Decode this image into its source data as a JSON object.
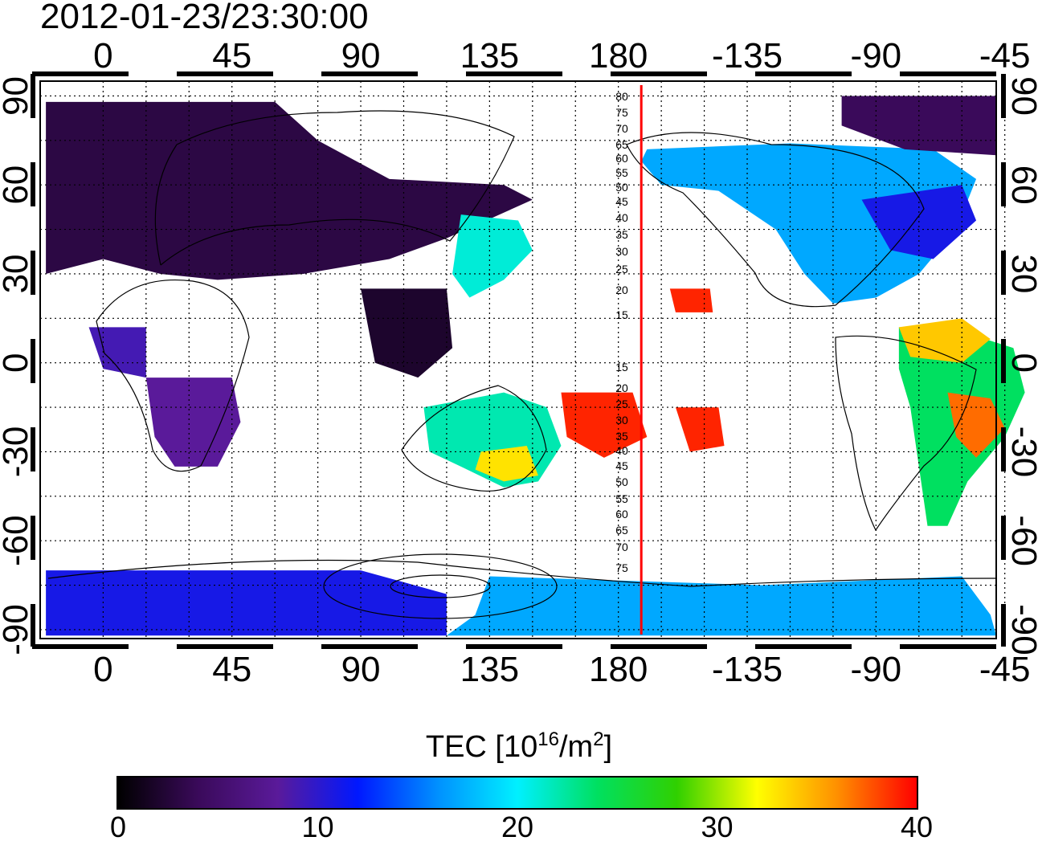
{
  "timestamp": "2012-01-23/23:30:00",
  "map": {
    "lon_ticks_top": [
      "0",
      "45",
      "90",
      "135",
      "180",
      "-135",
      "-90",
      "-45"
    ],
    "lon_ticks_bottom": [
      "0",
      "45",
      "90",
      "135",
      "180",
      "-135",
      "-90",
      "-45"
    ],
    "lat_ticks_left": [
      "90",
      "60",
      "30",
      "0",
      "-30",
      "-60",
      "-90"
    ],
    "lat_ticks_right": [
      "90",
      "60",
      "30",
      "0",
      "-30",
      "-60",
      "-90"
    ],
    "magnetic_lat_labels": [
      "80",
      "75",
      "70",
      "65",
      "60",
      "55",
      "50",
      "45",
      "40",
      "35",
      "30",
      "25",
      "20",
      "15",
      "15",
      "20",
      "25",
      "30",
      "35",
      "40",
      "45",
      "50",
      "55",
      "60",
      "65",
      "70",
      "75"
    ],
    "meridian_line_color": "#ff0000",
    "meridian_line_longitude": 188,
    "lon_range": [
      -22,
      312
    ],
    "lat_range": [
      -93,
      95
    ]
  },
  "colorbar": {
    "title": "TEC  [10",
    "title_sup": "16",
    "title_unit": "/m",
    "title_unit_sup": "2",
    "title_end": "]",
    "ticks": [
      "0",
      "10",
      "20",
      "30",
      "40"
    ],
    "range": [
      0,
      40
    ],
    "stops": [
      "#000000",
      "#3a0a5a",
      "#5a1a9a",
      "#0018ff",
      "#0090ff",
      "#00f0ff",
      "#00e060",
      "#30d000",
      "#ffff00",
      "#ff9000",
      "#ff0000"
    ]
  },
  "tec_regions": [
    {
      "name": "europe-asia-north",
      "poly": [
        [
          -20,
          88
        ],
        [
          60,
          88
        ],
        [
          75,
          75
        ],
        [
          100,
          62
        ],
        [
          140,
          60
        ],
        [
          150,
          55
        ],
        [
          120,
          42
        ],
        [
          100,
          35
        ],
        [
          70,
          30
        ],
        [
          40,
          28
        ],
        [
          20,
          30
        ],
        [
          0,
          35
        ],
        [
          -20,
          30
        ]
      ],
      "tec": 3
    },
    {
      "name": "north-america",
      "poly": [
        [
          190,
          72
        ],
        [
          240,
          74
        ],
        [
          290,
          72
        ],
        [
          305,
          62
        ],
        [
          298,
          45
        ],
        [
          285,
          30
        ],
        [
          270,
          22
        ],
        [
          255,
          20
        ],
        [
          245,
          30
        ],
        [
          235,
          45
        ],
        [
          215,
          58
        ],
        [
          195,
          60
        ],
        [
          188,
          68
        ]
      ],
      "tec": 17
    },
    {
      "name": "north-america-east",
      "poly": [
        [
          265,
          55
        ],
        [
          300,
          60
        ],
        [
          305,
          48
        ],
        [
          290,
          35
        ],
        [
          275,
          38
        ]
      ],
      "tec": 11
    },
    {
      "name": "arctic-canada",
      "poly": [
        [
          258,
          90
        ],
        [
          312,
          90
        ],
        [
          312,
          70
        ],
        [
          280,
          72
        ],
        [
          258,
          80
        ]
      ],
      "tec": 4
    },
    {
      "name": "japan-east-asia",
      "poly": [
        [
          125,
          50
        ],
        [
          145,
          48
        ],
        [
          150,
          38
        ],
        [
          140,
          28
        ],
        [
          128,
          22
        ],
        [
          122,
          30
        ]
      ],
      "tec": 21
    },
    {
      "name": "south-america",
      "poly": [
        [
          278,
          12
        ],
        [
          295,
          12
        ],
        [
          318,
          5
        ],
        [
          322,
          -10
        ],
        [
          315,
          -25
        ],
        [
          302,
          -40
        ],
        [
          295,
          -55
        ],
        [
          288,
          -55
        ],
        [
          285,
          -35
        ],
        [
          282,
          -15
        ],
        [
          278,
          -2
        ]
      ],
      "tec": 24
    },
    {
      "name": "south-america-hot",
      "poly": [
        [
          295,
          -10
        ],
        [
          310,
          -12
        ],
        [
          315,
          -22
        ],
        [
          305,
          -32
        ],
        [
          298,
          -25
        ]
      ],
      "tec": 37
    },
    {
      "name": "caribbean-hot",
      "poly": [
        [
          278,
          12
        ],
        [
          300,
          15
        ],
        [
          310,
          8
        ],
        [
          300,
          0
        ],
        [
          282,
          2
        ]
      ],
      "tec": 34
    },
    {
      "name": "australia",
      "poly": [
        [
          112,
          -15
        ],
        [
          140,
          -10
        ],
        [
          155,
          -15
        ],
        [
          160,
          -28
        ],
        [
          152,
          -40
        ],
        [
          140,
          -42
        ],
        [
          125,
          -35
        ],
        [
          114,
          -30
        ]
      ],
      "tec": 22
    },
    {
      "name": "australia-hot",
      "poly": [
        [
          132,
          -30
        ],
        [
          148,
          -28
        ],
        [
          152,
          -38
        ],
        [
          140,
          -40
        ],
        [
          130,
          -36
        ]
      ],
      "tec": 33
    },
    {
      "name": "pacific-hot-1",
      "poly": [
        [
          160,
          -10
        ],
        [
          185,
          -10
        ],
        [
          190,
          -25
        ],
        [
          175,
          -32
        ],
        [
          162,
          -25
        ]
      ],
      "tec": 39
    },
    {
      "name": "pacific-hot-2",
      "poly": [
        [
          200,
          -15
        ],
        [
          215,
          -15
        ],
        [
          217,
          -28
        ],
        [
          205,
          -30
        ]
      ],
      "tec": 39
    },
    {
      "name": "hawaii-hot",
      "poly": [
        [
          198,
          25
        ],
        [
          212,
          25
        ],
        [
          213,
          17
        ],
        [
          200,
          17
        ]
      ],
      "tec": 39
    },
    {
      "name": "africa-east",
      "poly": [
        [
          15,
          -5
        ],
        [
          45,
          -5
        ],
        [
          48,
          -20
        ],
        [
          40,
          -35
        ],
        [
          25,
          -35
        ],
        [
          18,
          -25
        ]
      ],
      "tec": 8
    },
    {
      "name": "africa-west",
      "poly": [
        [
          -5,
          12
        ],
        [
          15,
          12
        ],
        [
          15,
          -5
        ],
        [
          0,
          -2
        ]
      ],
      "tec": 9
    },
    {
      "name": "india-seasia",
      "poly": [
        [
          90,
          25
        ],
        [
          120,
          25
        ],
        [
          122,
          5
        ],
        [
          110,
          -5
        ],
        [
          95,
          0
        ]
      ],
      "tec": 2
    },
    {
      "name": "antarctic-east",
      "poly": [
        [
          135,
          -72
        ],
        [
          230,
          -75
        ],
        [
          300,
          -72
        ],
        [
          310,
          -85
        ],
        [
          312,
          -92
        ],
        [
          120,
          -92
        ],
        [
          130,
          -85
        ]
      ],
      "tec": 17
    },
    {
      "name": "antarctic-west",
      "poly": [
        [
          -20,
          -70
        ],
        [
          90,
          -70
        ],
        [
          120,
          -78
        ],
        [
          120,
          -92
        ],
        [
          -20,
          -92
        ]
      ],
      "tec": 11
    }
  ]
}
